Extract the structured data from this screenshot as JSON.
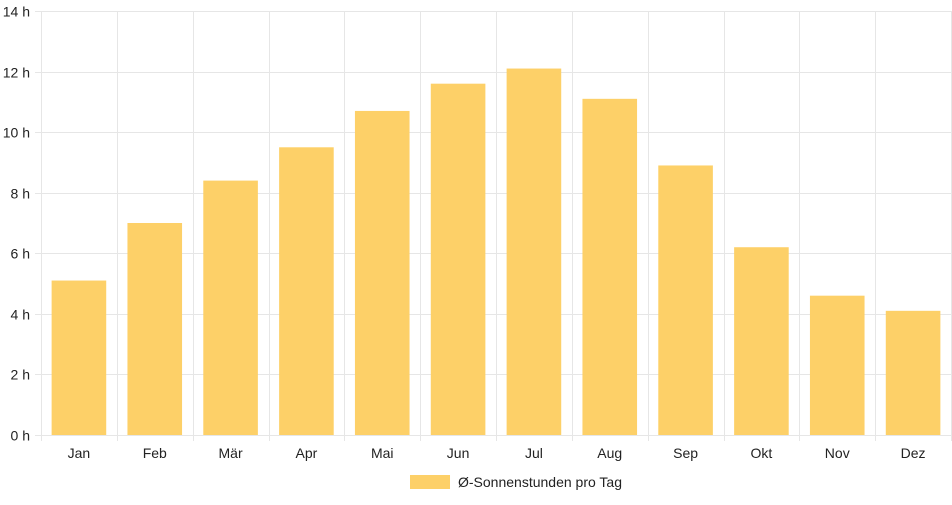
{
  "chart_data": {
    "type": "bar",
    "categories": [
      "Jan",
      "Feb",
      "Mär",
      "Apr",
      "Mai",
      "Jun",
      "Jul",
      "Aug",
      "Sep",
      "Okt",
      "Nov",
      "Dez"
    ],
    "series": [
      {
        "name": "Ø-Sonnenstunden pro Tag",
        "values": [
          5.1,
          7.0,
          8.4,
          9.5,
          10.7,
          11.6,
          12.1,
          11.1,
          8.9,
          6.2,
          4.6,
          4.1
        ],
        "color": "#fdd068"
      }
    ],
    "ylim": [
      0,
      14
    ],
    "yticks": [
      0,
      2,
      4,
      6,
      8,
      10,
      12,
      14
    ],
    "ytick_suffix": " h",
    "grid": true,
    "legend_position": "bottom",
    "grid_color": "#e6e6e6"
  }
}
